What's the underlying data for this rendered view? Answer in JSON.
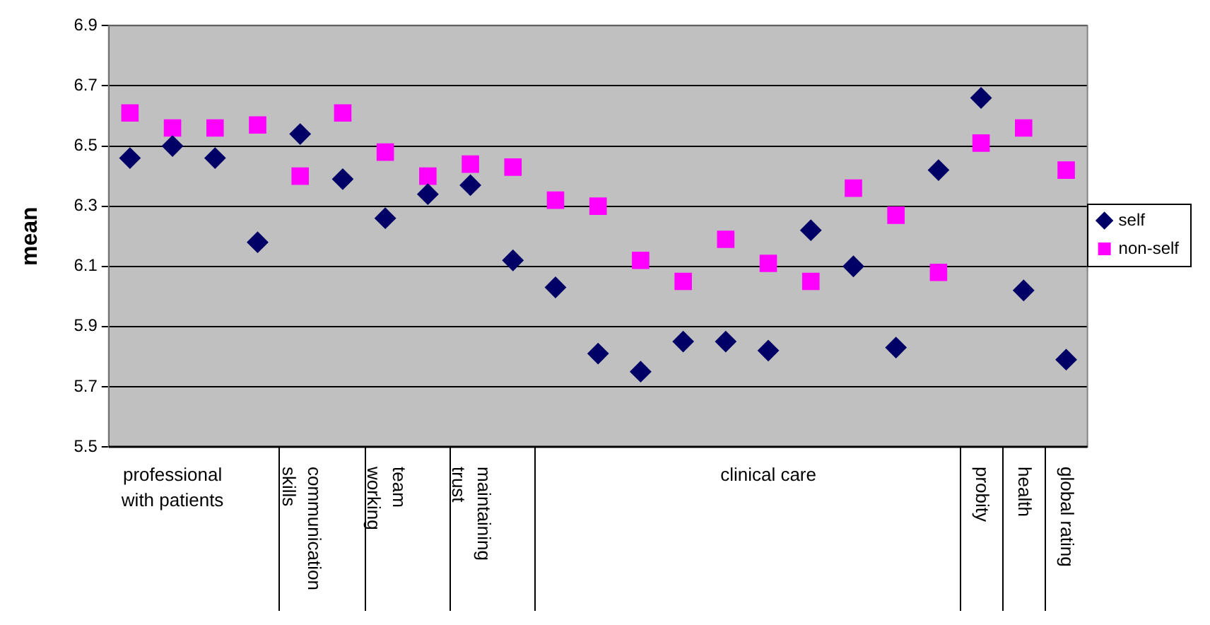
{
  "chart_data": {
    "type": "scatter",
    "ylabel": "mean",
    "categories": [
      null,
      "professional with patients",
      null,
      null,
      "communication skills",
      null,
      "team working",
      null,
      "maintaining trust",
      null,
      null,
      null,
      null,
      null,
      null,
      "clinical care",
      null,
      null,
      null,
      null,
      "probity",
      "health",
      "global rating"
    ],
    "series": [
      {
        "name": "self",
        "color": "#000066",
        "marker": "diamond",
        "values": [
          6.46,
          6.5,
          6.46,
          6.18,
          6.54,
          6.39,
          6.26,
          6.34,
          6.37,
          6.12,
          6.03,
          5.81,
          5.75,
          5.85,
          5.85,
          5.82,
          6.22,
          6.1,
          5.83,
          6.42,
          6.66,
          6.02,
          5.79
        ]
      },
      {
        "name": "non-self",
        "color": "#ff00ff",
        "marker": "square",
        "values": [
          6.61,
          6.56,
          6.56,
          6.57,
          6.4,
          6.61,
          6.48,
          6.4,
          6.44,
          6.43,
          6.32,
          6.3,
          6.12,
          6.05,
          6.19,
          6.11,
          6.05,
          6.36,
          6.27,
          6.08,
          6.51,
          6.56,
          6.42
        ]
      }
    ],
    "ylim": [
      5.5,
      6.9
    ],
    "yticks": [
      5.5,
      5.7,
      5.9,
      6.1,
      6.3,
      6.5,
      6.7,
      6.9
    ],
    "grid": "y",
    "legend": "right"
  }
}
